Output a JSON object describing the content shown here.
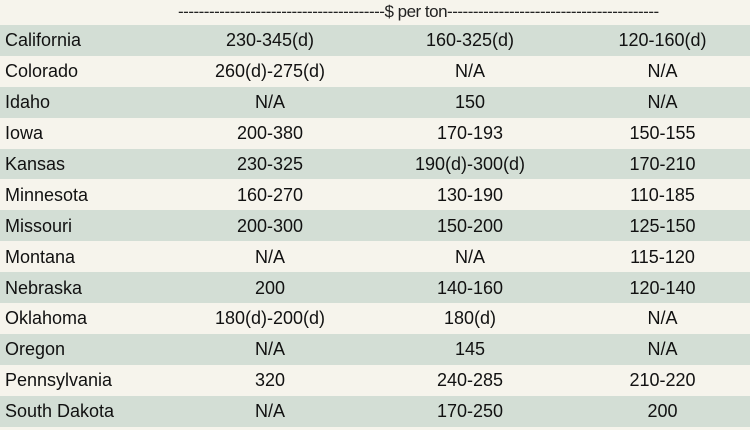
{
  "header": {
    "price_label": "----------------------------------------$ per ton-----------------------------------------"
  },
  "rows": [
    {
      "state": "California",
      "c1": "230-345(d)",
      "c2": "160-325(d)",
      "c3": "120-160(d)"
    },
    {
      "state": "Colorado",
      "c1": "260(d)-275(d)",
      "c2": "N/A",
      "c3": "N/A"
    },
    {
      "state": "Idaho",
      "c1": "N/A",
      "c2": "150",
      "c3": "N/A"
    },
    {
      "state": "Iowa",
      "c1": "200-380",
      "c2": "170-193",
      "c3": "150-155"
    },
    {
      "state": "Kansas",
      "c1": "230-325",
      "c2": "190(d)-300(d)",
      "c3": "170-210"
    },
    {
      "state": "Minnesota",
      "c1": "160-270",
      "c2": "130-190",
      "c3": "110-185"
    },
    {
      "state": "Missouri",
      "c1": "200-300",
      "c2": "150-200",
      "c3": "125-150"
    },
    {
      "state": "Montana",
      "c1": "N/A",
      "c2": "N/A",
      "c3": "115-120"
    },
    {
      "state": "Nebraska",
      "c1": "200",
      "c2": "140-160",
      "c3": "120-140"
    },
    {
      "state": "Oklahoma",
      "c1": "180(d)-200(d)",
      "c2": "180(d)",
      "c3": "N/A"
    },
    {
      "state": "Oregon",
      "c1": "N/A",
      "c2": "145",
      "c3": "N/A"
    },
    {
      "state": "Pennsylvania",
      "c1": "320",
      "c2": "240-285",
      "c3": "210-220"
    },
    {
      "state": "South Dakota",
      "c1": "N/A",
      "c2": "170-250",
      "c3": "200"
    }
  ],
  "colors": {
    "band": "#d3ded5",
    "background": "#f6f4ec"
  }
}
